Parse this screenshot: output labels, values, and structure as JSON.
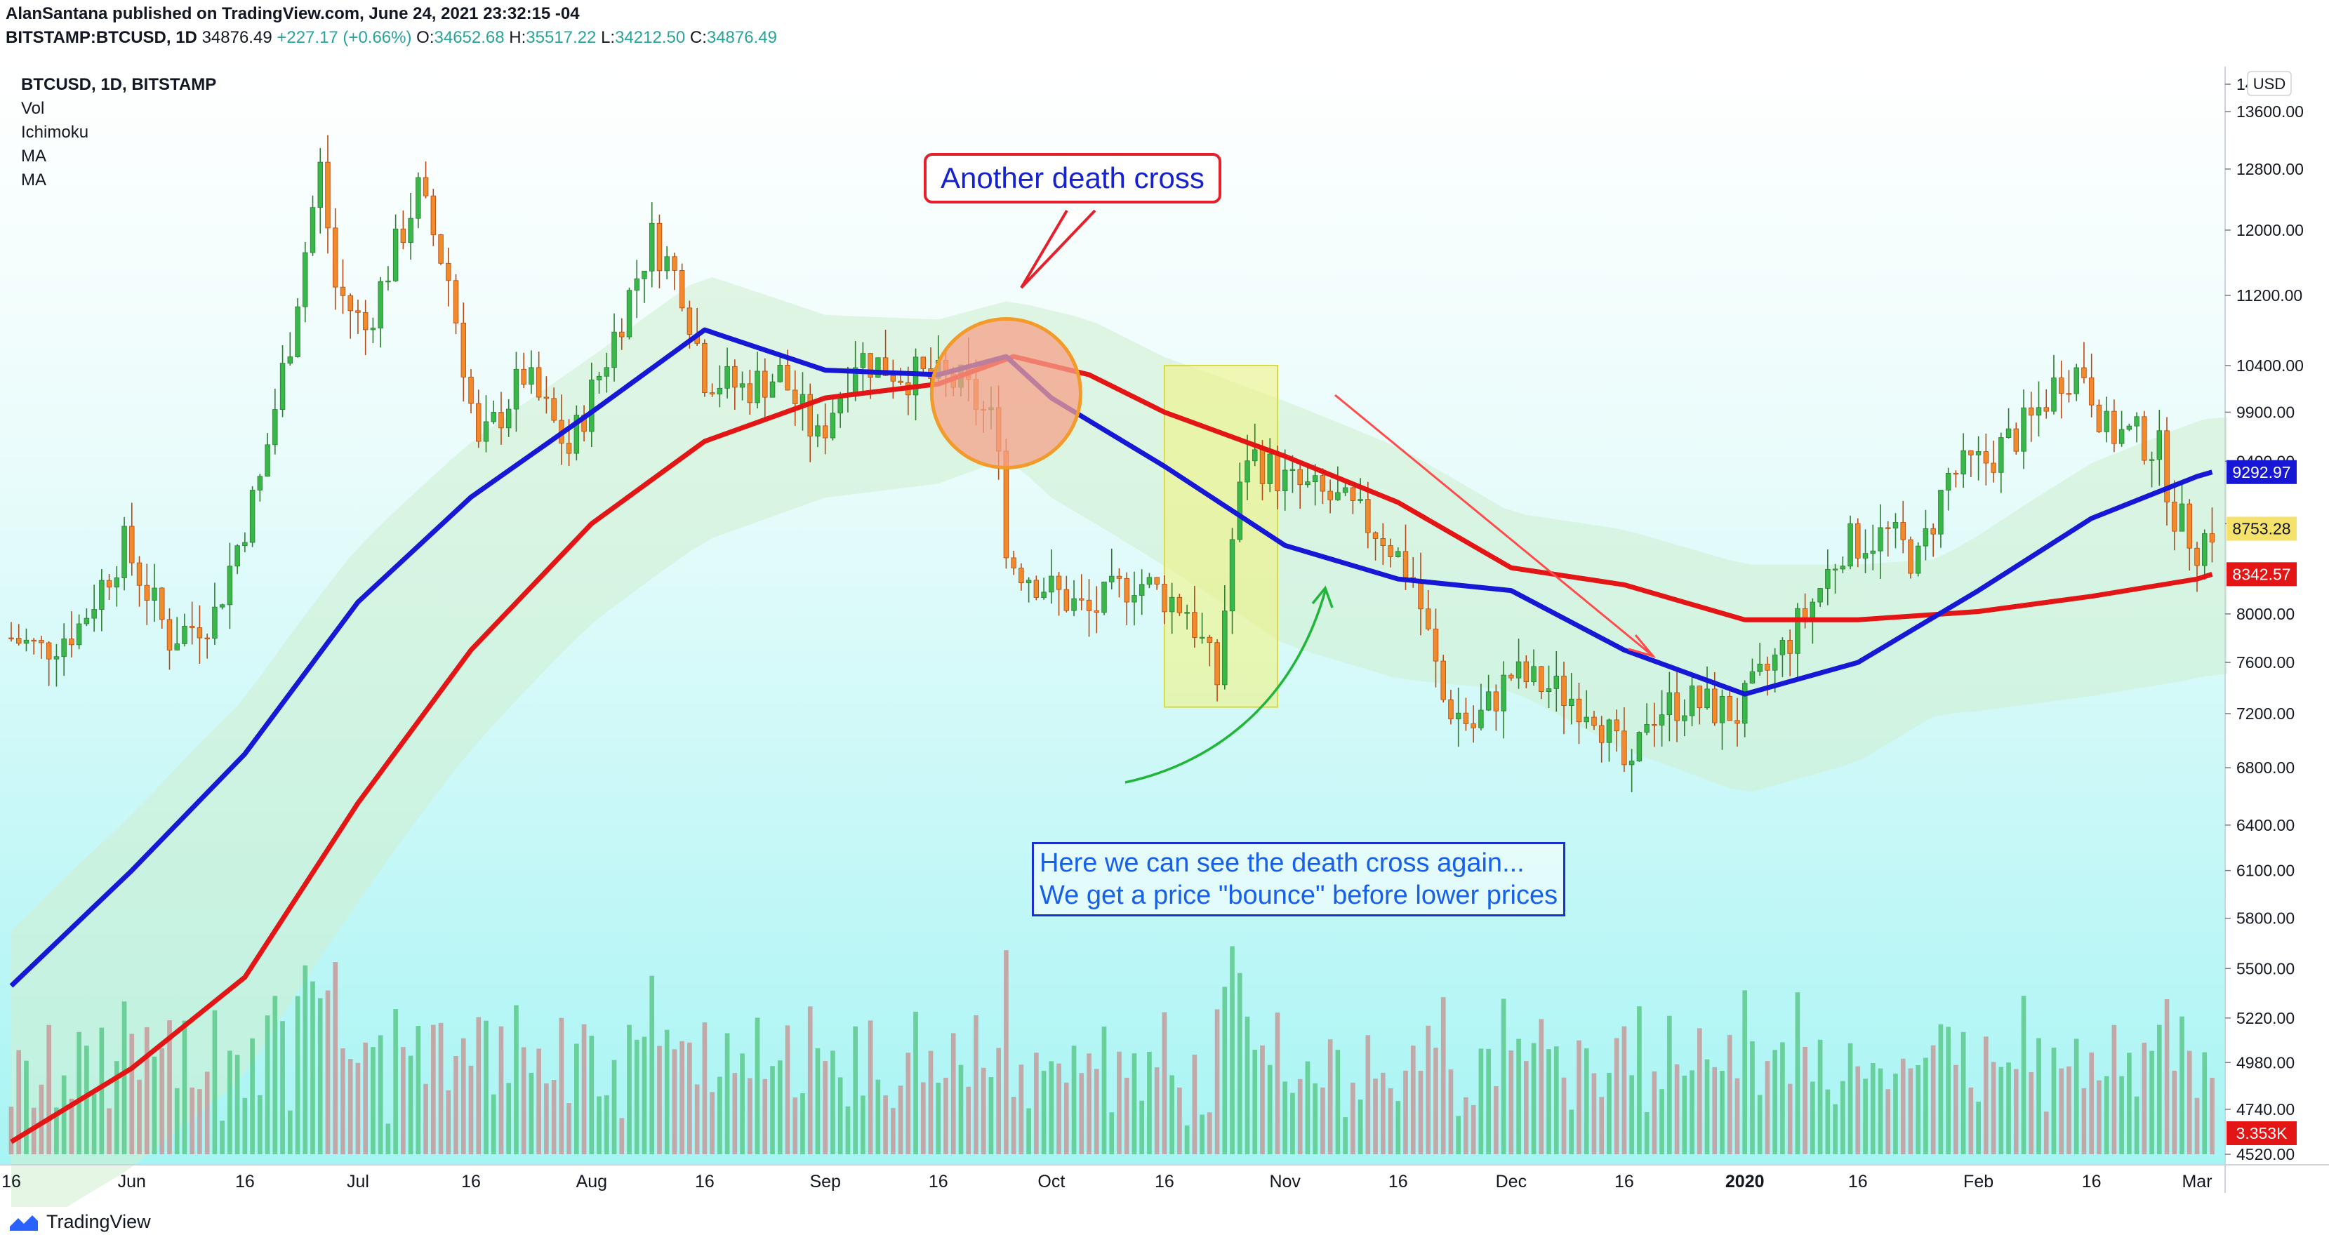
{
  "header": {
    "publisher_line": "AlanSantana published on TradingView.com, June 24, 2021 23:32:15 -04",
    "symbol": "BITSTAMP:BTCUSD, 1D",
    "last": "34876.49",
    "change": "+227.17 (+0.66%)",
    "open_label": "O:",
    "open": "34652.68",
    "high_label": "H:",
    "high": "35517.22",
    "low_label": "L:",
    "low": "34212.50",
    "close_label": "C:",
    "close": "34876.49"
  },
  "legend": {
    "title": "BTCUSD, 1D, BITSTAMP",
    "items": [
      "Vol",
      "Ichimoku",
      "MA",
      "MA"
    ]
  },
  "annotations": {
    "callout": "Another death cross",
    "note_line1": "Here we can see the death cross again...",
    "note_line2": "We get a price \"bounce\" before lower prices"
  },
  "footer": {
    "brand": "TradingView"
  },
  "colors": {
    "up": "#26a69a",
    "down": "#ef5350",
    "ma_fast": "#1717d6",
    "ma_slow": "#e31515",
    "vol_up": "#5cc98b",
    "vol_down": "#c59a9a",
    "highlight": "#f2f27a"
  },
  "chart_data": {
    "type": "candlestick",
    "scale": "log",
    "currency": "USD",
    "yticks": [
      14000,
      13600,
      12800,
      12000,
      11200,
      10400,
      9900,
      9400,
      8800,
      8000,
      7600,
      7200,
      6800,
      6400,
      6100,
      5800,
      5500,
      5220,
      4980,
      4740,
      4520
    ],
    "ytick_labels": [
      "14000",
      "13600.00",
      "12800.00",
      "12000.00",
      "11200.00",
      "10400.00",
      "9900.00",
      "9400.00",
      "8800.00",
      "8000.00",
      "7600.00",
      "7200.00",
      "6800.00",
      "6400.00",
      "6100.00",
      "5800.00",
      "5500.00",
      "5220.00",
      "4980.00",
      "4740.00",
      "4520.00"
    ],
    "xticks": [
      {
        "label": "16",
        "date": "2019-05-16"
      },
      {
        "label": "Jun",
        "date": "2019-06-01"
      },
      {
        "label": "16",
        "date": "2019-06-16"
      },
      {
        "label": "Jul",
        "date": "2019-07-01"
      },
      {
        "label": "16",
        "date": "2019-07-16"
      },
      {
        "label": "Aug",
        "date": "2019-08-01"
      },
      {
        "label": "16",
        "date": "2019-08-16"
      },
      {
        "label": "Sep",
        "date": "2019-09-01"
      },
      {
        "label": "16",
        "date": "2019-09-16"
      },
      {
        "label": "Oct",
        "date": "2019-10-01"
      },
      {
        "label": "16",
        "date": "2019-10-16"
      },
      {
        "label": "Nov",
        "date": "2019-11-01"
      },
      {
        "label": "16",
        "date": "2019-11-16"
      },
      {
        "label": "Dec",
        "date": "2019-12-01"
      },
      {
        "label": "16",
        "date": "2019-12-16"
      },
      {
        "label": "2020",
        "date": "2020-01-01"
      },
      {
        "label": "16",
        "date": "2020-01-16"
      },
      {
        "label": "Feb",
        "date": "2020-02-01"
      },
      {
        "label": "16",
        "date": "2020-02-16"
      },
      {
        "label": "Mar",
        "date": "2020-03-01"
      }
    ],
    "price_key_points": [
      [
        "2019-05-16",
        7800
      ],
      [
        "2019-05-20",
        7700
      ],
      [
        "2019-05-25",
        7900
      ],
      [
        "2019-05-31",
        8600
      ],
      [
        "2019-06-06",
        7800
      ],
      [
        "2019-06-12",
        8000
      ],
      [
        "2019-06-18",
        9200
      ],
      [
        "2019-06-22",
        10700
      ],
      [
        "2019-06-26",
        12800
      ],
      [
        "2019-06-28",
        11300
      ],
      [
        "2019-07-02",
        10800
      ],
      [
        "2019-07-09",
        12500
      ],
      [
        "2019-07-13",
        11400
      ],
      [
        "2019-07-17",
        9500
      ],
      [
        "2019-07-23",
        10300
      ],
      [
        "2019-07-29",
        9500
      ],
      [
        "2019-08-03",
        10500
      ],
      [
        "2019-08-09",
        11900
      ],
      [
        "2019-08-13",
        11300
      ],
      [
        "2019-08-16",
        10300
      ],
      [
        "2019-08-21",
        10150
      ],
      [
        "2019-08-26",
        10300
      ],
      [
        "2019-08-31",
        9600
      ],
      [
        "2019-09-05",
        10500
      ],
      [
        "2019-09-12",
        10300
      ],
      [
        "2019-09-19",
        10200
      ],
      [
        "2019-09-24",
        9700
      ],
      [
        "2019-09-25",
        8500
      ],
      [
        "2019-10-01",
        8200
      ],
      [
        "2019-10-06",
        8000
      ],
      [
        "2019-10-12",
        8300
      ],
      [
        "2019-10-19",
        8050
      ],
      [
        "2019-10-23",
        7450
      ],
      [
        "2019-10-25",
        8650
      ],
      [
        "2019-10-27",
        9500
      ],
      [
        "2019-11-01",
        9200
      ],
      [
        "2019-11-08",
        9000
      ],
      [
        "2019-11-14",
        8700
      ],
      [
        "2019-11-18",
        8300
      ],
      [
        "2019-11-22",
        7300
      ],
      [
        "2019-11-26",
        7100
      ],
      [
        "2019-12-01",
        7500
      ],
      [
        "2019-12-06",
        7400
      ],
      [
        "2019-12-12",
        7250
      ],
      [
        "2019-12-17",
        6700
      ],
      [
        "2019-12-19",
        7200
      ],
      [
        "2019-12-24",
        7300
      ],
      [
        "2019-12-31",
        7200
      ],
      [
        "2020-01-06",
        7700
      ],
      [
        "2020-01-10",
        8100
      ],
      [
        "2020-01-14",
        8600
      ],
      [
        "2020-01-20",
        8700
      ],
      [
        "2020-01-24",
        8450
      ],
      [
        "2020-01-28",
        9250
      ],
      [
        "2020-02-02",
        9400
      ],
      [
        "2020-02-08",
        9800
      ],
      [
        "2020-02-12",
        10300
      ],
      [
        "2020-02-15",
        10350
      ],
      [
        "2020-02-18",
        9700
      ],
      [
        "2020-02-22",
        9650
      ],
      [
        "2020-02-25",
        9500
      ],
      [
        "2020-02-27",
        8900
      ],
      [
        "2020-03-01",
        8600
      ],
      [
        "2020-03-03",
        8753.28
      ]
    ],
    "series": [
      {
        "name": "MA",
        "role": "fast",
        "color": "#1717d6",
        "last": 9292.97,
        "points": [
          [
            "2019-05-16",
            5400
          ],
          [
            "2019-06-01",
            6100
          ],
          [
            "2019-06-16",
            6900
          ],
          [
            "2019-07-01",
            8100
          ],
          [
            "2019-07-16",
            9050
          ],
          [
            "2019-08-01",
            9900
          ],
          [
            "2019-08-16",
            10800
          ],
          [
            "2019-09-01",
            10350
          ],
          [
            "2019-09-16",
            10300
          ],
          [
            "2019-09-25",
            10500
          ],
          [
            "2019-10-01",
            10050
          ],
          [
            "2019-10-16",
            9350
          ],
          [
            "2019-11-01",
            8600
          ],
          [
            "2019-11-16",
            8300
          ],
          [
            "2019-12-01",
            8200
          ],
          [
            "2019-12-16",
            7700
          ],
          [
            "2020-01-01",
            7350
          ],
          [
            "2020-01-16",
            7600
          ],
          [
            "2020-02-01",
            8200
          ],
          [
            "2020-02-16",
            8850
          ],
          [
            "2020-03-01",
            9250
          ],
          [
            "2020-03-03",
            9292.97
          ]
        ]
      },
      {
        "name": "MA",
        "role": "slow",
        "color": "#e31515",
        "last": 8342.57,
        "points": [
          [
            "2019-05-16",
            4580
          ],
          [
            "2019-06-01",
            4950
          ],
          [
            "2019-06-16",
            5450
          ],
          [
            "2019-07-01",
            6550
          ],
          [
            "2019-07-16",
            7700
          ],
          [
            "2019-08-01",
            8800
          ],
          [
            "2019-08-16",
            9600
          ],
          [
            "2019-09-01",
            10050
          ],
          [
            "2019-09-16",
            10200
          ],
          [
            "2019-09-26",
            10500
          ],
          [
            "2019-10-06",
            10300
          ],
          [
            "2019-10-16",
            9900
          ],
          [
            "2019-11-01",
            9450
          ],
          [
            "2019-11-16",
            9000
          ],
          [
            "2019-12-01",
            8400
          ],
          [
            "2019-12-16",
            8250
          ],
          [
            "2020-01-01",
            7950
          ],
          [
            "2020-01-16",
            7950
          ],
          [
            "2020-02-01",
            8020
          ],
          [
            "2020-02-16",
            8150
          ],
          [
            "2020-03-01",
            8300
          ],
          [
            "2020-03-03",
            8342.57
          ]
        ]
      }
    ],
    "price_labels": {
      "ma_fast": "9292.97",
      "last": "8753.28",
      "ma_slow": "8342.57",
      "volume": "3.353K",
      "currency": "USD",
      "top_partial": "8342.57"
    },
    "highlight_range": {
      "from": "2019-10-16",
      "to": "2019-10-31",
      "price_low": 7250,
      "price_high": 10400
    },
    "death_cross_circle": {
      "date": "2019-09-25",
      "price": 10100
    },
    "legend_items": [
      "Vol",
      "Ichimoku",
      "MA",
      "MA"
    ]
  }
}
